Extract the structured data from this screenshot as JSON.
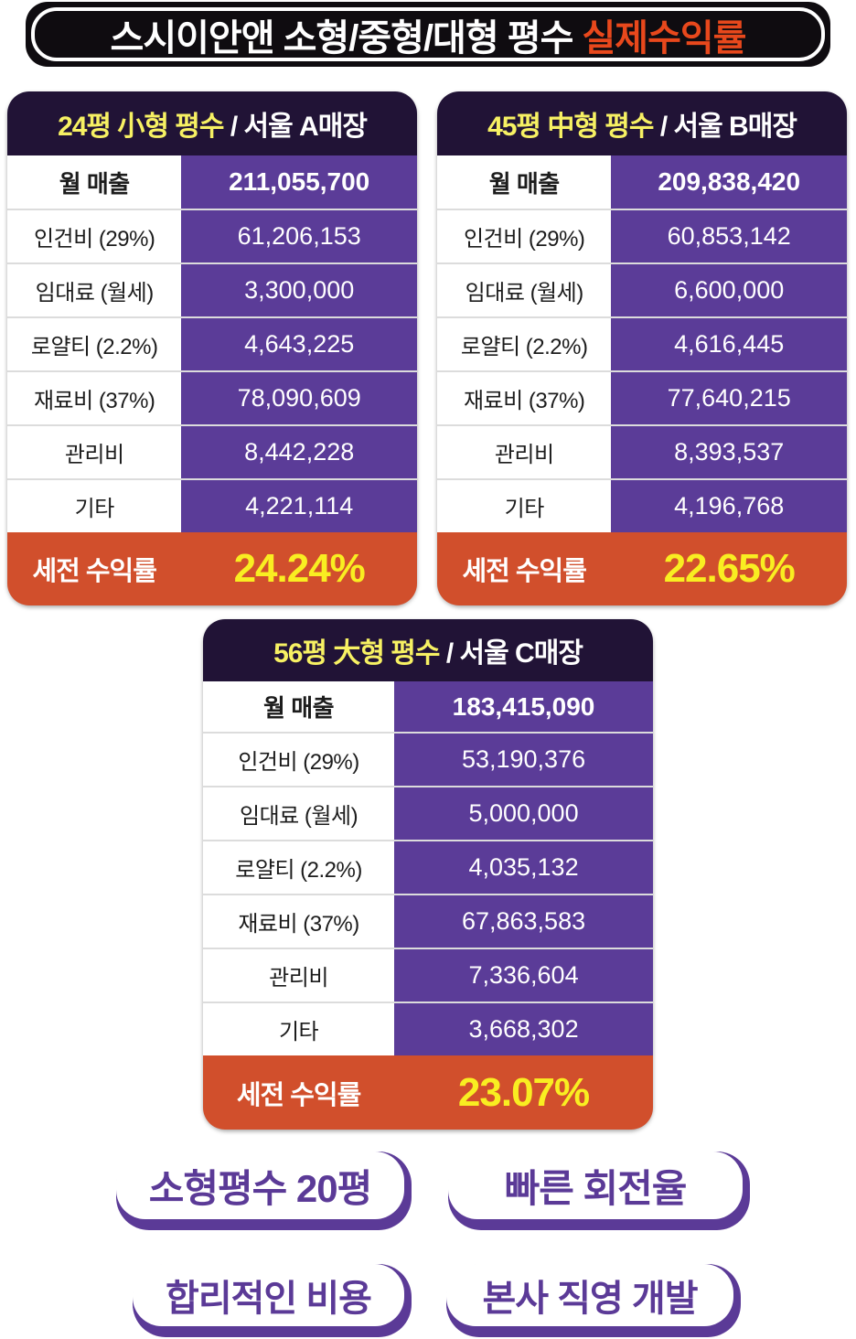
{
  "title": {
    "prefix": "스시이안앤 소형/중형/대형 평수 ",
    "highlight": "실제수익률"
  },
  "colors": {
    "banner_bg": "#0f0c10",
    "banner_highlight": "#e8481c",
    "header_navy": "#211336",
    "header_yellow": "#f7f163",
    "cell_purple": "#5b3c98",
    "footer_orange": "#d14f2c",
    "footer_yellow": "#f9ee21",
    "badge_purple": "#5b3a97"
  },
  "tables": [
    {
      "size_title": "24평 小형 평수 ",
      "store_title": "/ 서울 A매장",
      "revenue_label": "월 매출",
      "revenue_value": "211,055,700",
      "rows": [
        {
          "label": "인건비 (29%)",
          "value": "61,206,153"
        },
        {
          "label": "임대료 (월세)",
          "value": "3,300,000"
        },
        {
          "label": "로얄티 (2.2%)",
          "value": "4,643,225"
        },
        {
          "label": "재료비 (37%)",
          "value": "78,090,609"
        },
        {
          "label": "관리비",
          "value": "8,442,228"
        },
        {
          "label": "기타",
          "value": "4,221,114"
        }
      ],
      "footer_label": "세전 수익률",
      "footer_value": "24.24%"
    },
    {
      "size_title": "45평 中형 평수 ",
      "store_title": "/ 서울 B매장",
      "revenue_label": "월 매출",
      "revenue_value": "209,838,420",
      "rows": [
        {
          "label": "인건비 (29%)",
          "value": "60,853,142"
        },
        {
          "label": "임대료 (월세)",
          "value": "6,600,000"
        },
        {
          "label": "로얄티 (2.2%)",
          "value": "4,616,445"
        },
        {
          "label": "재료비 (37%)",
          "value": "77,640,215"
        },
        {
          "label": "관리비",
          "value": "8,393,537"
        },
        {
          "label": "기타",
          "value": "4,196,768"
        }
      ],
      "footer_label": "세전 수익률",
      "footer_value": "22.65%"
    },
    {
      "size_title": "56평 大형 평수 ",
      "store_title": "/ 서울 C매장",
      "revenue_label": "월 매출",
      "revenue_value": "183,415,090",
      "rows": [
        {
          "label": "인건비 (29%)",
          "value": "53,190,376"
        },
        {
          "label": "임대료 (월세)",
          "value": "5,000,000"
        },
        {
          "label": "로얄티 (2.2%)",
          "value": "4,035,132"
        },
        {
          "label": "재료비 (37%)",
          "value": "67,863,583"
        },
        {
          "label": "관리비",
          "value": "7,336,604"
        },
        {
          "label": "기타",
          "value": "3,668,302"
        }
      ],
      "footer_label": "세전 수익률",
      "footer_value": "23.07%"
    }
  ],
  "badges": [
    {
      "label": "소형평수 20평"
    },
    {
      "label": "빠른 회전율"
    },
    {
      "label": "합리적인 비용"
    },
    {
      "label": "본사 직영 개발"
    }
  ]
}
